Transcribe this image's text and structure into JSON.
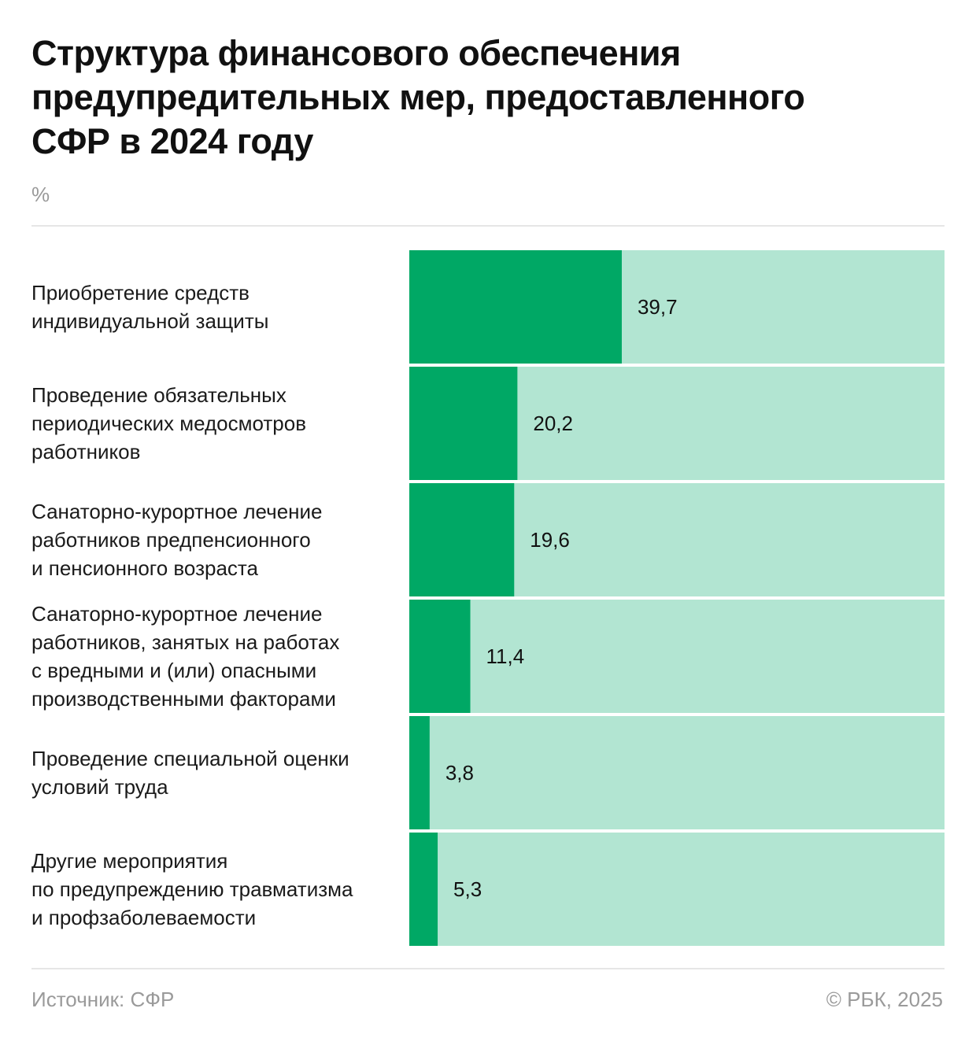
{
  "header": {
    "title": "Структура финансового обеспечения\nпредупредительных мер, предоставленного\nСФР в 2024 году",
    "unit": "%"
  },
  "rows": [
    {
      "label": "Приобретение средств\nиндивидуальной защиты",
      "value_label": "39,7"
    },
    {
      "label": "Проведение обязательных\nпериодических медосмотров\nработников",
      "value_label": "20,2"
    },
    {
      "label": "Санаторно-курортное лечение\nработников предпенсионного\nи пенсионного возраста",
      "value_label": "19,6"
    },
    {
      "label": "Санаторно-курортное лечение\nработников, занятых на работах\nс вредными и (или) опасными\nпроизводственными факторами",
      "value_label": "11,4"
    },
    {
      "label": "Проведение специальной оценки\nусловий труда",
      "value_label": "3,8"
    },
    {
      "label": "Другие мероприятия\nпо предупреждению травматизма\nи профзаболеваемости",
      "value_label": "5,3"
    }
  ],
  "footer": {
    "source": "Источник: СФР",
    "copyright": "© РБК, 2025"
  },
  "colors": {
    "bar": "#00a865",
    "track": "#b2e5d2",
    "text": "#111111",
    "muted": "#9a9a9a"
  },
  "chart_data": {
    "type": "bar",
    "orientation": "horizontal",
    "title": "Структура финансового обеспечения предупредительных мер, предоставленного СФР в 2024 году",
    "unit": "%",
    "categories": [
      "Приобретение средств индивидуальной защиты",
      "Проведение обязательных периодических медосмотров работников",
      "Санаторно-курортное лечение работников предпенсионного и пенсионного возраста",
      "Санаторно-курортное лечение работников, занятых на работах с вредными и (или) опасными производственными факторами",
      "Проведение специальной оценки условий труда",
      "Другие мероприятия по предупреждению травматизма и профзаболеваемости"
    ],
    "values": [
      39.7,
      20.2,
      19.6,
      11.4,
      3.8,
      5.3
    ],
    "xlim": [
      0,
      100
    ],
    "grid": false,
    "legend": "none"
  }
}
